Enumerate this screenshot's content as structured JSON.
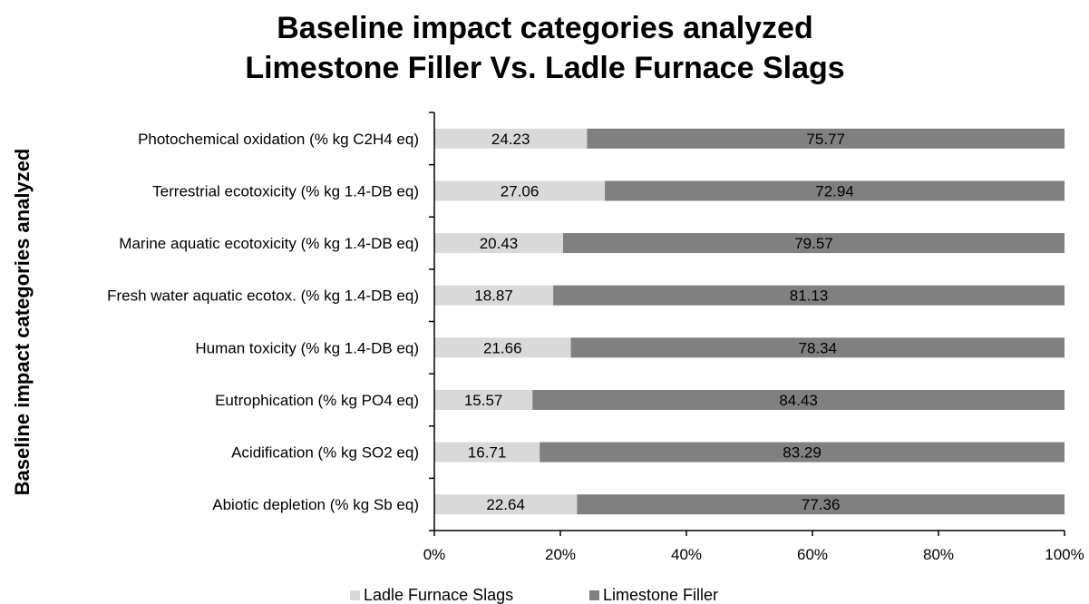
{
  "chart_data": {
    "type": "bar",
    "orientation": "horizontal",
    "stacked": "percent",
    "title": [
      "Baseline impact categories analyzed",
      "Limestone Filler Vs. Ladle Furnace Slags"
    ],
    "ylabel": "Baseline impact categories analyzed",
    "xlabel": "",
    "categories": [
      "Photochemical oxidation (% kg C2H4 eq)",
      "Terrestrial ecotoxicity (% kg 1.4-DB eq)",
      "Marine aquatic ecotoxicity (% kg 1.4-DB eq)",
      "Fresh water aquatic ecotox. (% kg 1.4-DB eq)",
      "Human toxicity (% kg 1.4-DB eq)",
      "Eutrophication (% kg PO4 eq)",
      "Acidification (% kg SO2 eq)",
      "Abiotic depletion (% kg Sb eq)"
    ],
    "series": [
      {
        "name": "Ladle Furnace Slags",
        "color": "#d9d9d9",
        "values": [
          24.23,
          27.06,
          20.43,
          18.87,
          21.66,
          15.57,
          16.71,
          22.64
        ]
      },
      {
        "name": "Limestone Filler",
        "color": "#808080",
        "values": [
          75.77,
          72.94,
          79.57,
          81.13,
          78.34,
          84.43,
          83.29,
          77.36
        ]
      }
    ],
    "data_labels": [
      [
        "24.23",
        "27.06",
        "20.43",
        "18.87",
        "21.66",
        "15.57",
        "16.71",
        "22.64"
      ],
      [
        "75.77",
        "72.94",
        "79.57",
        "81.13",
        "78.34",
        "84.43",
        "83.29",
        "77.36"
      ]
    ],
    "xlim": [
      0,
      100
    ],
    "xticks": [
      0,
      20,
      40,
      60,
      80,
      100
    ],
    "xtick_labels": [
      "0%",
      "20%",
      "40%",
      "60%",
      "80%",
      "100%"
    ],
    "grid": false,
    "legend_position": "bottom"
  }
}
